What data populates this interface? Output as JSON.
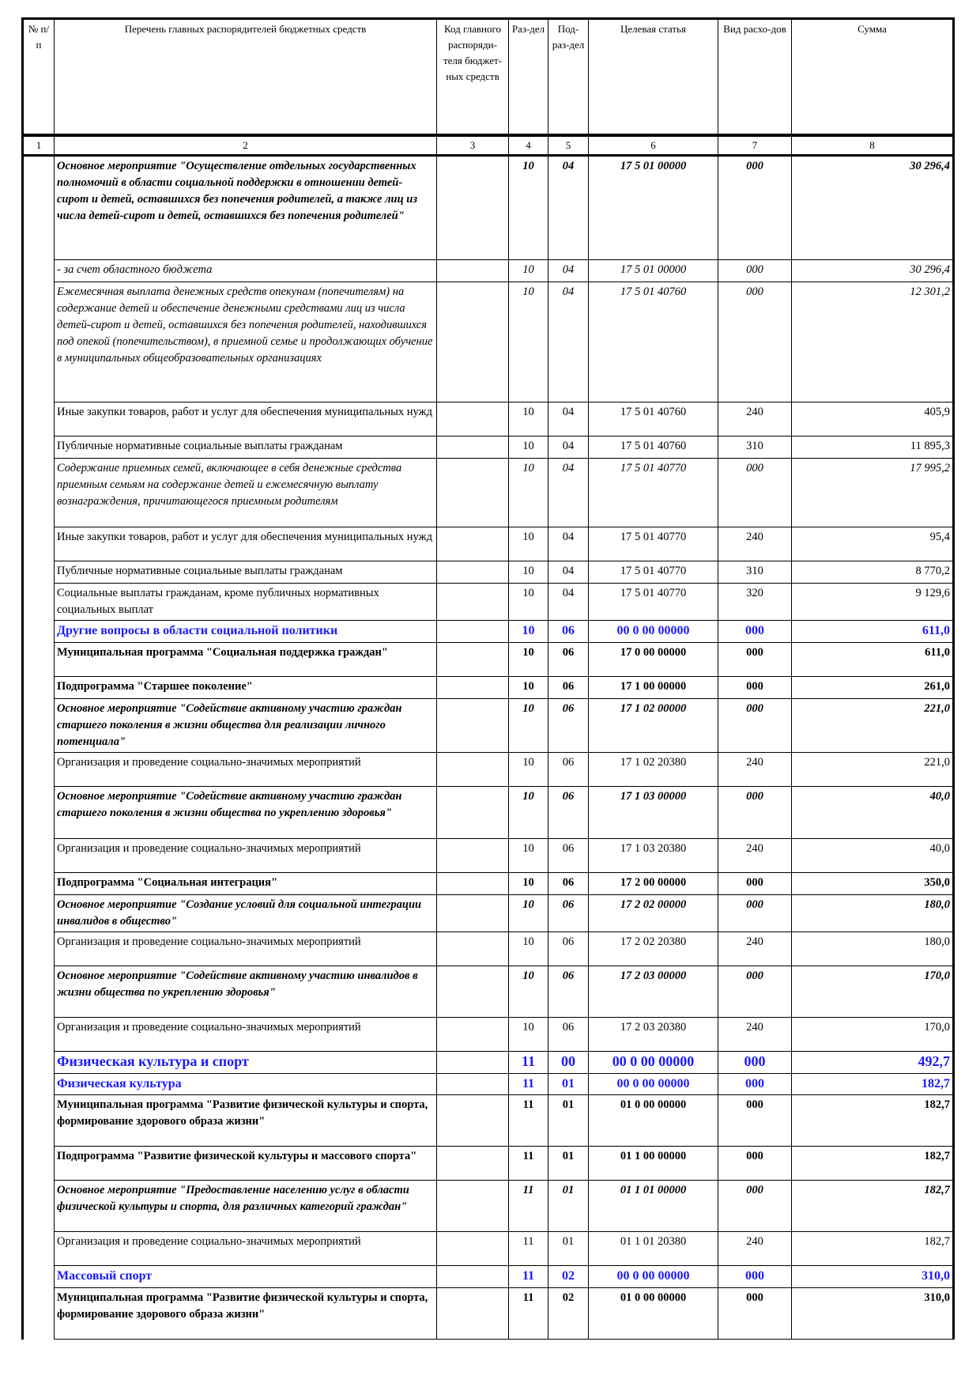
{
  "headers": [
    "№ п/п",
    "Перечень главных распорядителей бюджетных средств",
    "Код главного распоряди-теля бюджет-ных средств",
    "Раз-дел",
    "Под-раз-дел",
    "Целевая статья",
    "Вид расхо-дов",
    "Сумма"
  ],
  "col_numbers": [
    "1",
    "2",
    "3",
    "4",
    "5",
    "6",
    "7",
    "8"
  ],
  "rows": [
    {
      "s": "bi",
      "h": 131,
      "name": "Основное мероприятие \"Осуществление отдельных государственных полномочий в области социальной поддержки в отношении детей-сирот и детей, оставшихся без попечения родителей, а также лиц из числа детей-сирот и детей, оставшихся без попечения родителей\"",
      "rz": "10",
      "pr": "04",
      "cs": "17 5 01 00000",
      "vr": "000",
      "sum": "30 296,4"
    },
    {
      "s": "i",
      "h": 28,
      "name": " - за счет областного бюджета",
      "rz": "10",
      "pr": "04",
      "cs": "17 5 01 00000",
      "vr": "000",
      "sum": "30 296,4"
    },
    {
      "s": "i",
      "h": 152,
      "name": "Ежемесячная выплата денежных средств опекунам (попечителям) на содержание детей и обеспечение денежными средствами лиц из числа детей-сирот и детей, оставшихся без попечения родителей, находившихся под опекой (попечительством), в приемной семье и продолжающих обучение в муниципальных общеобразовательных организациях",
      "rz": "10",
      "pr": "04",
      "cs": "17 5 01 40760",
      "vr": "000",
      "sum": "12 301,2"
    },
    {
      "s": "n",
      "h": 43,
      "name": "Иные закупки товаров, работ и услуг для обеспечения муниципальных нужд",
      "rz": "10",
      "pr": "04",
      "cs": "17 5 01 40760",
      "vr": "240",
      "sum": "405,9"
    },
    {
      "s": "n",
      "h": 28,
      "name": "Публичные нормативные социальные выплаты гражданам",
      "rz": "10",
      "pr": "04",
      "cs": "17 5 01 40760",
      "vr": "310",
      "sum": "11 895,3"
    },
    {
      "s": "i",
      "h": 87,
      "name": "Содержание приемных семей, включающее в себя денежные средства приемным семьям на содержание детей и ежемесячную выплату вознаграждения, причитающегося приемным родителям",
      "rz": "10",
      "pr": "04",
      "cs": "17 5 01 40770",
      "vr": "000",
      "sum": "17 995,2"
    },
    {
      "s": "n",
      "h": 43,
      "name": "Иные закупки товаров, работ и услуг для обеспечения муниципальных нужд",
      "rz": "10",
      "pr": "04",
      "cs": "17 5 01 40770",
      "vr": "240",
      "sum": "95,4"
    },
    {
      "s": "n",
      "h": 28,
      "name": "Публичные нормативные социальные выплаты гражданам",
      "rz": "10",
      "pr": "04",
      "cs": "17 5 01 40770",
      "vr": "310",
      "sum": "8 770,2"
    },
    {
      "s": "n",
      "h": 43,
      "name": "Социальные выплаты гражданам, кроме публичных нормативных социальных выплат",
      "rz": "10",
      "pr": "04",
      "cs": "17 5 01 40770",
      "vr": "320",
      "sum": "9 129,6"
    },
    {
      "s": "blue",
      "h": 28,
      "name": "Другие вопросы в области социальной политики",
      "rz": "10",
      "pr": "06",
      "cs": "00 0 00 00000",
      "vr": "000",
      "sum": "611,0"
    },
    {
      "s": "b",
      "h": 43,
      "name": "Муниципальная программа \"Социальная поддержка граждан\"",
      "rz": "10",
      "pr": "06",
      "cs": "17 0 00 00000",
      "vr": "000",
      "sum": "611,0"
    },
    {
      "s": "b",
      "h": 28,
      "name": "Подпрограмма \"Старшее поколение\"",
      "rz": "10",
      "pr": "06",
      "cs": "17 1 00 00000",
      "vr": "000",
      "sum": "261,0"
    },
    {
      "s": "bi",
      "h": 65,
      "name": "Основное мероприятие \"Содействие активному участию граждан старшего поколения в жизни общества для реализации личного потенциала\"",
      "rz": "10",
      "pr": "06",
      "cs": "17 1 02 00000",
      "vr": "000",
      "sum": "221,0"
    },
    {
      "s": "n",
      "h": 43,
      "name": "Организация и проведение социально-значимых мероприятий",
      "rz": "10",
      "pr": "06",
      "cs": "17 1 02 20380",
      "vr": "240",
      "sum": "221,0"
    },
    {
      "s": "bi",
      "h": 66,
      "name": "Основное мероприятие \"Содействие активному участию граждан старшего поколения в жизни общества по укреплению здоровья\"",
      "rz": "10",
      "pr": "06",
      "cs": "17 1 03 00000",
      "vr": "000",
      "sum": "40,0"
    },
    {
      "s": "n",
      "h": 43,
      "name": "Организация и проведение социально-значимых мероприятий",
      "rz": "10",
      "pr": "06",
      "cs": "17 1 03 20380",
      "vr": "240",
      "sum": "40,0"
    },
    {
      "s": "b",
      "h": 28,
      "name": "Подпрограмма \"Социальная интеграция\"",
      "rz": "10",
      "pr": "06",
      "cs": "17 2 00 00000",
      "vr": "000",
      "sum": "350,0"
    },
    {
      "s": "bi",
      "h": 43,
      "name": "Основное мероприятие \"Создание условий для социальной интеграции инвалидов в общество\"",
      "rz": "10",
      "pr": "06",
      "cs": "17 2 02 00000",
      "vr": "000",
      "sum": "180,0"
    },
    {
      "s": "n",
      "h": 43,
      "name": "Организация и проведение социально-значимых мероприятий",
      "rz": "10",
      "pr": "06",
      "cs": "17 2 02 20380",
      "vr": "240",
      "sum": "180,0"
    },
    {
      "s": "bi",
      "h": 65,
      "name": "Основное мероприятие \"Содействие активному участию инвалидов в жизни общества по укреплению здоровья\"",
      "rz": "10",
      "pr": "06",
      "cs": "17 2 03 00000",
      "vr": "000",
      "sum": "170,0"
    },
    {
      "s": "n",
      "h": 43,
      "name": "Организация и проведение социально-значимых мероприятий",
      "rz": "10",
      "pr": "06",
      "cs": "17 2 03 20380",
      "vr": "240",
      "sum": "170,0"
    },
    {
      "s": "blue2",
      "h": 28,
      "name": "Физическая культура и спорт",
      "rz": "11",
      "pr": "00",
      "cs": "00 0 00 00000",
      "vr": "000",
      "sum": "492,7"
    },
    {
      "s": "blue",
      "h": 27,
      "name": "Физическая культура",
      "rz": "11",
      "pr": "01",
      "cs": "00 0 00 00000",
      "vr": "000",
      "sum": "182,7"
    },
    {
      "s": "b",
      "h": 65,
      "name": "Муниципальная программа \"Развитие физической культуры и спорта, формирование здорового образа жизни\"",
      "rz": "11",
      "pr": "01",
      "cs": "01 0 00 00000",
      "vr": "000",
      "sum": "182,7"
    },
    {
      "s": "b",
      "h": 43,
      "name": "Подпрограмма \"Развитие физической культуры и массового спорта\"",
      "rz": "11",
      "pr": "01",
      "cs": "01 1 00 00000",
      "vr": "000",
      "sum": "182,7"
    },
    {
      "s": "bi",
      "h": 65,
      "name": "Основное мероприятие \"Предоставление населению услуг в области физической культуры и спорта, для различных категорий граждан\"",
      "rz": "11",
      "pr": "01",
      "cs": "01 1 01 00000",
      "vr": "000",
      "sum": "182,7"
    },
    {
      "s": "n",
      "h": 43,
      "name": "Организация и проведение социально-значимых мероприятий",
      "rz": "11",
      "pr": "01",
      "cs": "01 1 01 20380",
      "vr": "240",
      "sum": "182,7"
    },
    {
      "s": "blue",
      "h": 28,
      "name": "Массовый спорт",
      "rz": "11",
      "pr": "02",
      "cs": "00 0 00 00000",
      "vr": "000",
      "sum": "310,0"
    },
    {
      "s": "b",
      "h": 65,
      "name": "Муниципальная программа \"Развитие физической культуры и спорта, формирование здорового образа жизни\"",
      "rz": "11",
      "pr": "02",
      "cs": "01 0 00 00000",
      "vr": "000",
      "sum": "310,0"
    }
  ]
}
